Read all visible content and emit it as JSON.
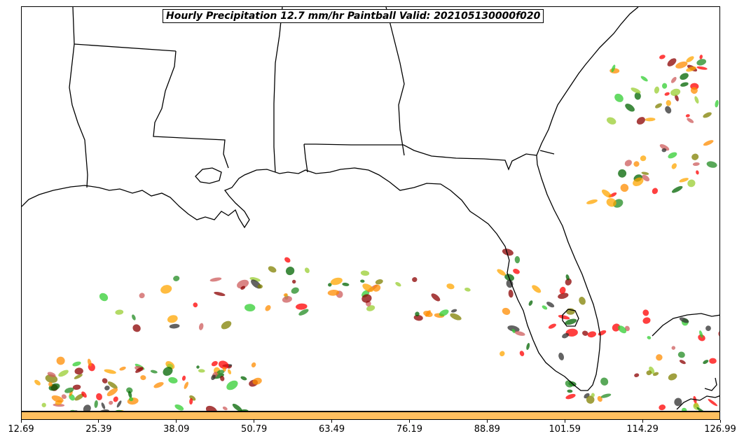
{
  "title": "Hourly Precipitation 12.7 mm/hr Paintball Valid: 202105130000f020",
  "colorbar": {
    "color": "#FFBF5F",
    "tick_labels": [
      "12.69",
      "25.39",
      "38.09",
      "50.79",
      "63.49",
      "76.19",
      "88.89",
      "101.59",
      "114.29",
      "126.99"
    ]
  },
  "member_colors": [
    "#228B22",
    "#32CD32",
    "#FF0000",
    "#8B0000",
    "#FF8C00",
    "#FFA500",
    "#9ACD32",
    "#808000",
    "#2F2F2F",
    "#CD5C5C",
    "#006400"
  ],
  "map": {
    "region": "Gulf Coast / Florida",
    "boundaries": [
      "coastline",
      "state-lines"
    ]
  }
}
